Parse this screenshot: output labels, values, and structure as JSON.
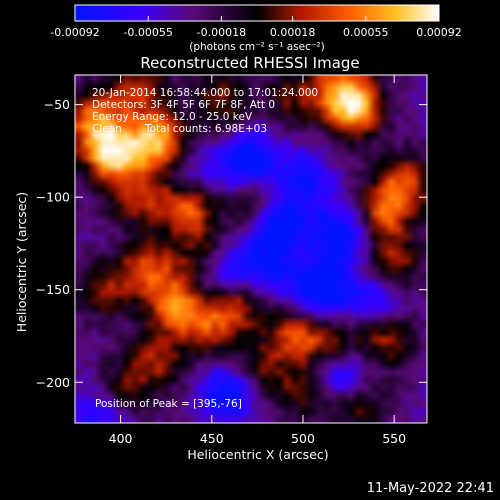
{
  "colorbar": {
    "ticks": [
      "-0.00092",
      "-0.00055",
      "-0.00018",
      "0.00018",
      "0.00055",
      "0.00092"
    ],
    "tick_values": [
      -0.00092,
      -0.00055,
      -0.00018,
      0.00018,
      0.00055,
      0.00092
    ],
    "range": [
      -0.00092,
      0.00092
    ],
    "unit_label": "(photons cm⁻² s⁻¹ asec⁻²)"
  },
  "info": {
    "time": "20-Jan-2014 16:58:44.000 to 17:01:24.000",
    "detectors": "Detectors: 3F 4F 5F 6F 7F 8F, Att 0",
    "energy": "Energy Range: 12.0 - 25.0 keV",
    "clean": "Clean",
    "counts": "Total counts: 6.98E+03",
    "peak": "Position of Peak = [395,-76]"
  },
  "timestamp": "11-May-2022 22:41",
  "colors": {
    "background": "#000000",
    "colormap": [
      "#0014ff",
      "#3a00ff",
      "#5a0a7a",
      "#000000",
      "#b01800",
      "#ff5a00",
      "#ffc020",
      "#ffffff"
    ]
  },
  "chart_data": {
    "type": "heatmap",
    "title": "Reconstructed RHESSI Image",
    "xlabel": "Heliocentric X (arcsec)",
    "ylabel": "Heliocentric Y (arcsec)",
    "xlim": [
      375,
      568
    ],
    "ylim": [
      -222,
      -34
    ],
    "xticks": [
      400,
      450,
      500,
      550
    ],
    "yticks": [
      -50,
      -100,
      -150,
      -200
    ],
    "peak": [
      395,
      -76
    ],
    "grid": false,
    "legend": "colorbar-top",
    "hotspots": [
      {
        "x": 395,
        "y": -76,
        "value": 0.00092
      },
      {
        "x": 420,
        "y": -70,
        "value": 0.00085
      },
      {
        "x": 385,
        "y": -57,
        "value": 0.0006
      },
      {
        "x": 410,
        "y": -42,
        "value": 0.0004
      },
      {
        "x": 437,
        "y": -104,
        "value": 0.00065
      },
      {
        "x": 410,
        "y": -100,
        "value": 0.0004
      },
      {
        "x": 475,
        "y": -105,
        "value": 0.00035
      },
      {
        "x": 415,
        "y": -138,
        "value": 0.0005
      },
      {
        "x": 445,
        "y": -131,
        "value": 0.00035
      },
      {
        "x": 392,
        "y": -150,
        "value": 0.0003
      },
      {
        "x": 430,
        "y": -158,
        "value": 0.0006
      },
      {
        "x": 465,
        "y": -158,
        "value": 0.0004
      },
      {
        "x": 448,
        "y": -170,
        "value": 0.0004
      },
      {
        "x": 495,
        "y": -175,
        "value": 0.00045
      },
      {
        "x": 515,
        "y": -180,
        "value": 0.00035
      },
      {
        "x": 420,
        "y": -188,
        "value": 0.00035
      },
      {
        "x": 545,
        "y": -175,
        "value": 0.0004
      },
      {
        "x": 550,
        "y": -135,
        "value": 0.00035
      },
      {
        "x": 545,
        "y": -108,
        "value": 0.0005
      },
      {
        "x": 555,
        "y": -92,
        "value": 0.00045
      },
      {
        "x": 528,
        "y": -52,
        "value": 0.0008
      },
      {
        "x": 520,
        "y": -40,
        "value": 0.0004
      },
      {
        "x": 495,
        "y": -45,
        "value": 0.00025
      },
      {
        "x": 455,
        "y": -48,
        "value": 0.0003
      },
      {
        "x": 400,
        "y": -205,
        "value": 0.0003
      },
      {
        "x": 475,
        "y": -195,
        "value": 0.00025
      },
      {
        "x": 500,
        "y": -205,
        "value": 0.0002
      },
      {
        "x": 530,
        "y": -212,
        "value": 0.00025
      }
    ],
    "coldspots": [
      {
        "x": 485,
        "y": -115,
        "value": -0.0009
      },
      {
        "x": 470,
        "y": -80,
        "value": -0.0007
      },
      {
        "x": 520,
        "y": -120,
        "value": -0.0007
      },
      {
        "x": 510,
        "y": -150,
        "value": -0.0008
      },
      {
        "x": 455,
        "y": -140,
        "value": -0.0006
      },
      {
        "x": 480,
        "y": -140,
        "value": -0.0005
      },
      {
        "x": 540,
        "y": -155,
        "value": -0.0005
      },
      {
        "x": 460,
        "y": -205,
        "value": -0.0007
      },
      {
        "x": 520,
        "y": -195,
        "value": -0.0006
      },
      {
        "x": 390,
        "y": -215,
        "value": -0.0005
      },
      {
        "x": 440,
        "y": -90,
        "value": -0.0004
      },
      {
        "x": 500,
        "y": -90,
        "value": -0.0005
      }
    ]
  }
}
